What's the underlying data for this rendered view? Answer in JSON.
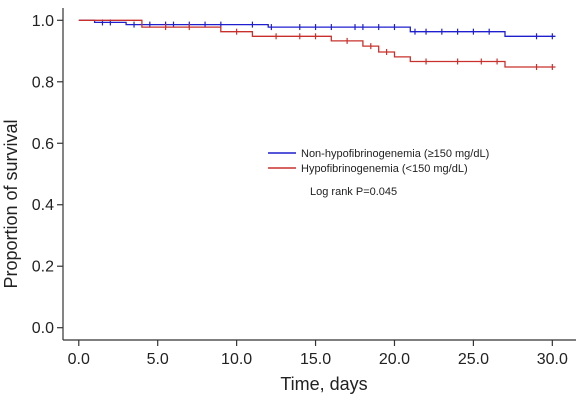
{
  "chart_data": {
    "type": "line",
    "subtype": "kaplan-meier step curve",
    "title": "",
    "xlabel": "Time, days",
    "ylabel": "Proportion of survival",
    "xlim": [
      -1,
      31.5
    ],
    "ylim": [
      -0.04,
      1.04
    ],
    "x_ticks": [
      0.0,
      5.0,
      10.0,
      15.0,
      20.0,
      25.0,
      30.0
    ],
    "x_tick_labels": [
      "0.0",
      "5.0",
      "10.0",
      "15.0",
      "20.0",
      "25.0",
      "30.0"
    ],
    "y_ticks": [
      0.0,
      0.2,
      0.4,
      0.6,
      0.8,
      1.0
    ],
    "y_tick_labels": [
      "0.0",
      "0.2",
      "0.4",
      "0.6",
      "0.8",
      "1.0"
    ],
    "grid": false,
    "legend_position": "center-right",
    "annotation": "Log rank P=0.045",
    "series": [
      {
        "name": "Non-hypofibrinogenemia (≥150 mg/dL)",
        "color": "#1f1fcf",
        "steps": [
          [
            0,
            1.0
          ],
          [
            1,
            0.993
          ],
          [
            3,
            0.986
          ],
          [
            12,
            0.978
          ],
          [
            21,
            0.963
          ],
          [
            27,
            0.948
          ],
          [
            30.2,
            0.948
          ]
        ],
        "censored": [
          [
            1.5,
            0.993
          ],
          [
            2,
            0.993
          ],
          [
            3.5,
            0.986
          ],
          [
            4.5,
            0.986
          ],
          [
            5.5,
            0.986
          ],
          [
            6,
            0.986
          ],
          [
            7,
            0.986
          ],
          [
            8,
            0.986
          ],
          [
            9,
            0.986
          ],
          [
            11,
            0.986
          ],
          [
            12.2,
            0.978
          ],
          [
            14,
            0.978
          ],
          [
            15,
            0.978
          ],
          [
            16,
            0.978
          ],
          [
            17.5,
            0.978
          ],
          [
            18,
            0.978
          ],
          [
            19,
            0.978
          ],
          [
            20,
            0.978
          ],
          [
            21.3,
            0.963
          ],
          [
            22,
            0.963
          ],
          [
            23,
            0.963
          ],
          [
            24,
            0.963
          ],
          [
            25,
            0.963
          ],
          [
            26,
            0.963
          ],
          [
            29,
            0.948
          ],
          [
            30,
            0.948
          ]
        ]
      },
      {
        "name": "Hypofibrinogenemia (<150 mg/dL)",
        "color": "#c9302c",
        "steps": [
          [
            0,
            1.0
          ],
          [
            4,
            0.978
          ],
          [
            9,
            0.963
          ],
          [
            11,
            0.948
          ],
          [
            16,
            0.933
          ],
          [
            18,
            0.916
          ],
          [
            19,
            0.897
          ],
          [
            20,
            0.881
          ],
          [
            21,
            0.866
          ],
          [
            27,
            0.848
          ],
          [
            30.2,
            0.848
          ]
        ],
        "censored": [
          [
            5.5,
            0.978
          ],
          [
            7,
            0.978
          ],
          [
            10,
            0.963
          ],
          [
            12.5,
            0.948
          ],
          [
            14,
            0.948
          ],
          [
            15,
            0.948
          ],
          [
            17,
            0.933
          ],
          [
            18.5,
            0.916
          ],
          [
            19.5,
            0.897
          ],
          [
            22,
            0.866
          ],
          [
            24,
            0.866
          ],
          [
            25.5,
            0.866
          ],
          [
            26.5,
            0.866
          ],
          [
            29,
            0.848
          ],
          [
            30,
            0.848
          ]
        ]
      }
    ]
  }
}
